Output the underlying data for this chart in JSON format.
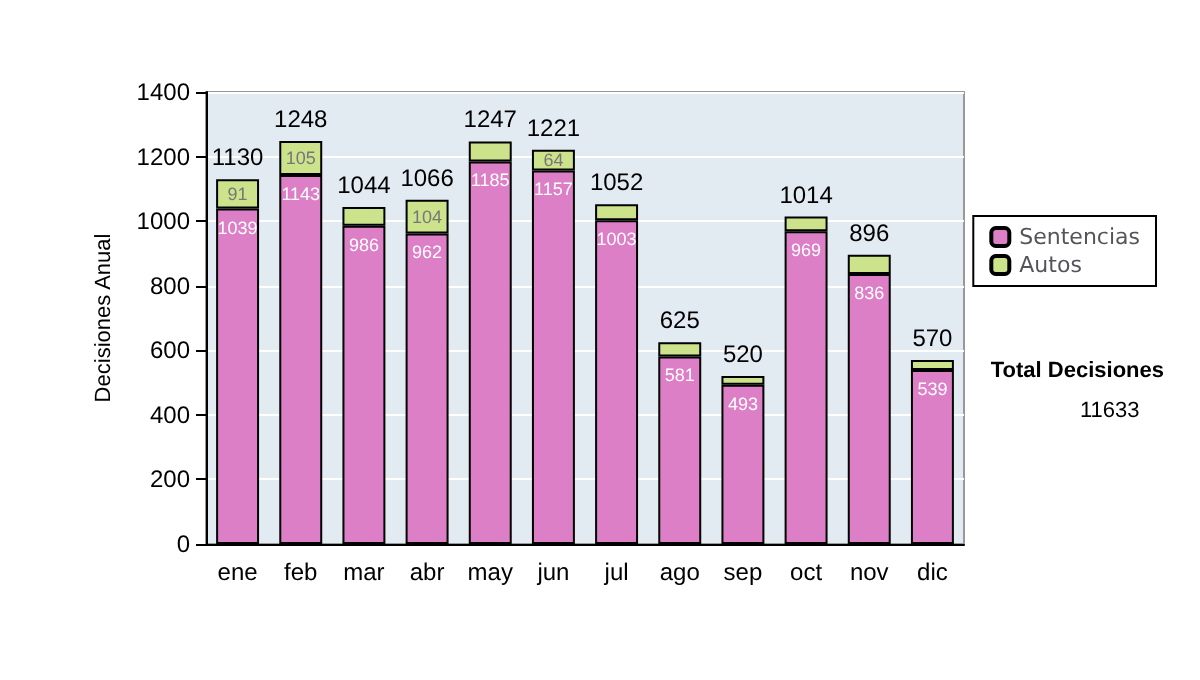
{
  "chart_data": {
    "type": "bar",
    "stacked": true,
    "ylabel": "Decisiones Anual",
    "categories": [
      "ene",
      "feb",
      "mar",
      "abr",
      "may",
      "jun",
      "jul",
      "ago",
      "sep",
      "oct",
      "nov",
      "dic"
    ],
    "series": [
      {
        "name": "Sentencias",
        "color": "#dd7fc6",
        "values": [
          1039,
          1143,
          986,
          962,
          1185,
          1157,
          1003,
          581,
          493,
          969,
          836,
          539
        ],
        "value_labels": [
          "1039",
          "1143",
          "986",
          "962",
          "1185",
          "1157",
          "1003",
          "581",
          "493",
          "969",
          "836",
          "539"
        ]
      },
      {
        "name": "Autos",
        "color": "#cce38c",
        "values": [
          91,
          105,
          58,
          104,
          62,
          64,
          49,
          44,
          27,
          45,
          60,
          31
        ],
        "value_labels": [
          "91",
          "105",
          null,
          "104",
          null,
          "64",
          null,
          null,
          null,
          null,
          null,
          null
        ]
      }
    ],
    "totals": [
      "1130",
      "1248",
      "1044",
      "1066",
      "1247",
      "1221",
      "1052",
      "625",
      "520",
      "1014",
      "896",
      "570"
    ],
    "ylim": [
      0,
      1400
    ],
    "yticks": [
      0,
      200,
      400,
      600,
      800,
      1000,
      1200,
      1400
    ],
    "grid": "y",
    "legend": "right",
    "annotations": [
      "Total Decisiones",
      "11633"
    ]
  }
}
